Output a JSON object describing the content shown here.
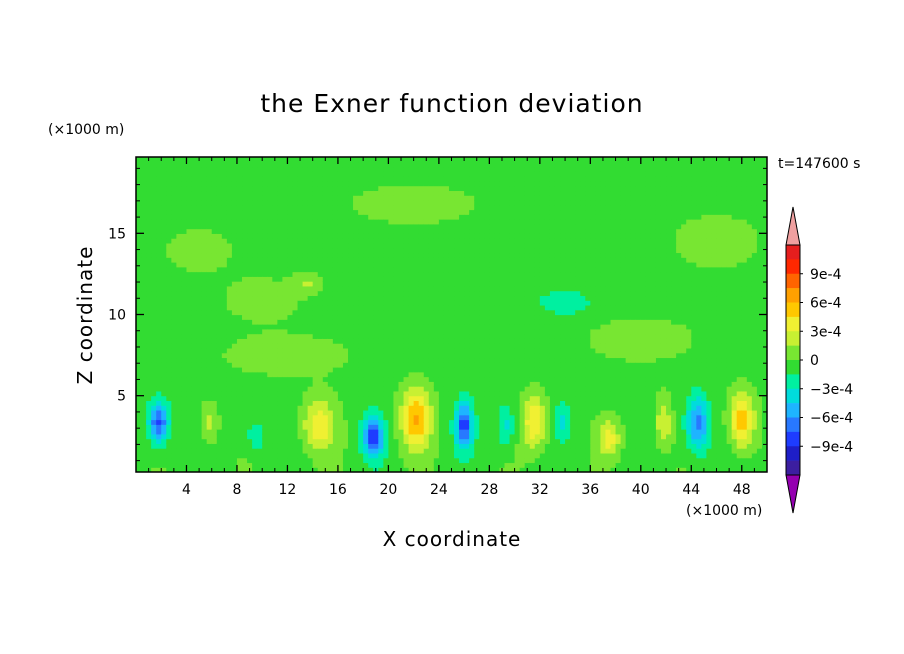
{
  "chart_data": {
    "type": "heatmap",
    "title": "the Exner function deviation",
    "xlabel": "X coordinate",
    "ylabel": "Z coordinate",
    "x_unit": "(×1000 m)",
    "y_unit": "(×1000 m)",
    "time_label": "t=147600 s",
    "xlim": [
      0,
      50
    ],
    "ylim": [
      0.3,
      19.7
    ],
    "x_ticks": [
      4,
      8,
      12,
      16,
      20,
      24,
      28,
      32,
      36,
      40,
      44,
      48
    ],
    "y_ticks": [
      5,
      10,
      15
    ],
    "colorbar": {
      "tick_labels": [
        "9e-4",
        "6e-4",
        "3e-4",
        "0",
        "−3e-4",
        "−6e-4",
        "−9e-4"
      ],
      "tick_values": [
        0.0009,
        0.0006,
        0.0003,
        0,
        -0.0003,
        -0.0006,
        -0.0009
      ],
      "level_step": 0.00015,
      "colors_low_to_high": [
        "#9400b0",
        "#3c1ea0",
        "#1e1ec8",
        "#1e3cff",
        "#2878ff",
        "#1eb4ff",
        "#00dcdc",
        "#00f0a0",
        "#32dc32",
        "#78e632",
        "#c8f032",
        "#f0f032",
        "#ffc800",
        "#ffa000",
        "#ff6400",
        "#ff2800",
        "#e61e1e",
        "#f0a0a0"
      ]
    },
    "fields": {
      "background_value": -5e-05,
      "features": [
        {
          "x": 1.8,
          "z": 3.4,
          "sx": 0.8,
          "sz": 1.3,
          "value": -0.00075
        },
        {
          "x": 5.8,
          "z": 3.3,
          "sx": 0.7,
          "sz": 1.3,
          "value": 0.00025
        },
        {
          "x": 9.5,
          "z": 2.5,
          "sx": 0.7,
          "sz": 1.0,
          "value": -0.00025
        },
        {
          "x": 14.5,
          "z": 3.2,
          "sx": 1.3,
          "sz": 1.6,
          "value": 0.00045
        },
        {
          "x": 18.8,
          "z": 2.5,
          "sx": 0.8,
          "sz": 1.2,
          "value": -0.0008
        },
        {
          "x": 22.2,
          "z": 3.6,
          "sx": 1.2,
          "sz": 1.8,
          "value": 0.00065
        },
        {
          "x": 26.0,
          "z": 3.2,
          "sx": 0.7,
          "sz": 1.4,
          "value": -0.00075
        },
        {
          "x": 31.6,
          "z": 3.4,
          "sx": 1.0,
          "sz": 1.6,
          "value": 0.0005
        },
        {
          "x": 29.3,
          "z": 3.2,
          "sx": 0.7,
          "sz": 1.3,
          "value": -0.0003
        },
        {
          "x": 33.8,
          "z": 3.4,
          "sx": 0.6,
          "sz": 1.2,
          "value": -0.00025
        },
        {
          "x": 37.5,
          "z": 2.4,
          "sx": 0.9,
          "sz": 1.1,
          "value": 0.0004
        },
        {
          "x": 41.8,
          "z": 3.4,
          "sx": 0.6,
          "sz": 1.5,
          "value": 0.00035
        },
        {
          "x": 44.5,
          "z": 3.3,
          "sx": 0.9,
          "sz": 1.7,
          "value": -0.00062
        },
        {
          "x": 48.0,
          "z": 3.5,
          "sx": 1.0,
          "sz": 1.7,
          "value": 0.0006
        },
        {
          "x": 10.0,
          "z": 11.0,
          "sx": 3.5,
          "sz": 1.5,
          "value": 0.0001
        },
        {
          "x": 34.0,
          "z": 10.8,
          "sx": 2.0,
          "sz": 0.8,
          "value": -0.00025
        },
        {
          "x": 13.5,
          "z": 12.0,
          "sx": 1.0,
          "sz": 0.6,
          "value": 0.0002
        },
        {
          "x": 22.0,
          "z": 16.8,
          "sx": 6.0,
          "sz": 1.4,
          "value": 0.0001
        },
        {
          "x": 5.0,
          "z": 14.0,
          "sx": 3.0,
          "sz": 1.5,
          "value": 0.0001
        },
        {
          "x": 40.0,
          "z": 8.5,
          "sx": 5.0,
          "sz": 1.6,
          "value": 0.0001
        },
        {
          "x": 46.0,
          "z": 14.5,
          "sx": 4.0,
          "sz": 2.0,
          "value": 0.0001
        },
        {
          "x": 12.0,
          "z": 7.5,
          "sx": 6.0,
          "sz": 1.5,
          "value": 0.0001
        }
      ]
    }
  }
}
